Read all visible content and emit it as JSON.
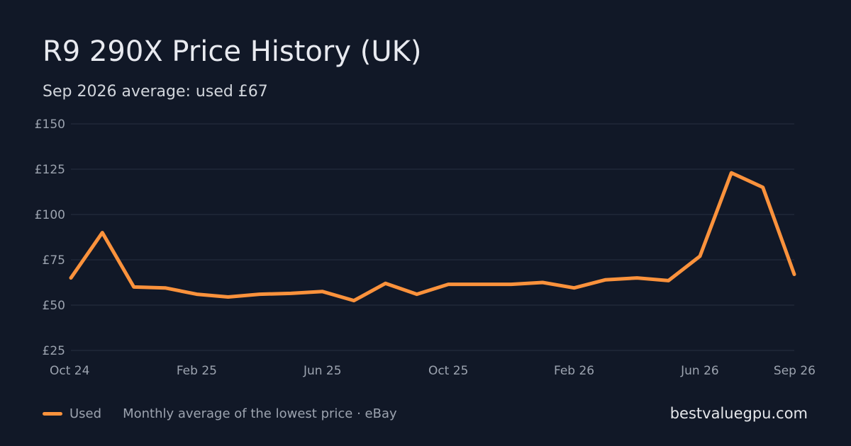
{
  "header": {
    "title": "R9 290X Price History (UK)",
    "subtitle": "Sep 2026 average: used £67"
  },
  "footer": {
    "legend_label": "Used",
    "note": "Monthly average of the lowest price · eBay",
    "brand": "bestvaluegpu.com"
  },
  "colors": {
    "background": "#111827",
    "series_used": "#fb923c",
    "grid": "#263041",
    "tick_text": "#9ca3af"
  },
  "chart_data": {
    "type": "line",
    "title": "R9 290X Price History (UK)",
    "subtitle": "Sep 2026 average: used £67",
    "x": [
      "Oct 24",
      "Nov 24",
      "Dec 24",
      "Jan 25",
      "Feb 25",
      "Mar 25",
      "Apr 25",
      "May 25",
      "Jun 25",
      "Jul 25",
      "Aug 25",
      "Sep 25",
      "Oct 25",
      "Nov 25",
      "Dec 25",
      "Jan 26",
      "Feb 26",
      "Mar 26",
      "Apr 26",
      "May 26",
      "Jun 26",
      "Jul 26",
      "Aug 26",
      "Sep 26"
    ],
    "series": [
      {
        "name": "Used",
        "values": [
          65,
          90,
          60,
          59.5,
          56,
          54.5,
          56,
          56.5,
          57.5,
          52.5,
          62,
          56,
          61.5,
          61.5,
          61.5,
          62.5,
          59.5,
          64,
          65,
          63.5,
          77,
          123,
          115,
          67
        ]
      }
    ],
    "ylim": [
      25,
      150
    ],
    "y_ticks": [
      {
        "value": 25,
        "label": "£25"
      },
      {
        "value": 50,
        "label": "£50"
      },
      {
        "value": 75,
        "label": "£75"
      },
      {
        "value": 100,
        "label": "£100"
      },
      {
        "value": 125,
        "label": "£125"
      },
      {
        "value": 150,
        "label": "£150"
      }
    ],
    "x_ticks": [
      "Oct 24",
      "Feb 25",
      "Jun 25",
      "Oct 25",
      "Feb 26",
      "Jun 26",
      "Sep 26"
    ],
    "grid": true,
    "legend": "bottom-left"
  }
}
